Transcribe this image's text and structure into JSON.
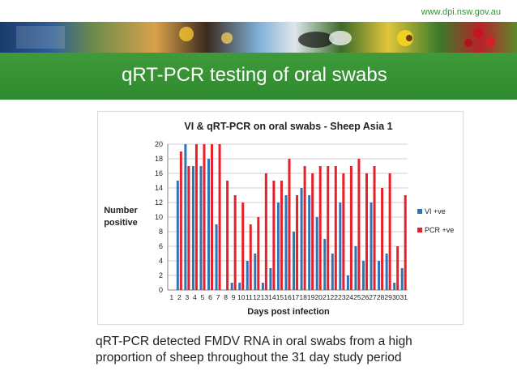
{
  "header": {
    "url": "www.dpi.nsw.gov.au",
    "banner_icon": "photo-strip-banner"
  },
  "slide": {
    "title": "qRT-PCR testing of oral swabs",
    "caption": "qRT-PCR detected FMDV RNA in oral swabs from a high proportion of sheep throughout the 31 day study period"
  },
  "colors": {
    "accent_green": "#2e8a2e",
    "series_vi": "#2e75b6",
    "series_pcr": "#e8202a"
  },
  "chart_data": {
    "type": "bar",
    "title": "VI & qRT-PCR on oral swabs - Sheep Asia 1",
    "xlabel": "Days post infection",
    "ylabel": "Number positive",
    "ylim": [
      0,
      20
    ],
    "yticks": [
      0,
      2,
      4,
      6,
      8,
      10,
      12,
      14,
      16,
      18,
      20
    ],
    "grid": true,
    "legend_position": "right",
    "categories": [
      "1",
      "2",
      "3",
      "4",
      "5",
      "6",
      "7",
      "8",
      "9",
      "10",
      "11",
      "12",
      "13",
      "14",
      "15",
      "16",
      "17",
      "18",
      "19",
      "20",
      "21",
      "22",
      "23",
      "24",
      "25",
      "26",
      "27",
      "28",
      "29",
      "30",
      "31"
    ],
    "series": [
      {
        "name": "VI +ve",
        "values": [
          0,
          15,
          20,
          17,
          17,
          18,
          9,
          0,
          1,
          1,
          4,
          5,
          1,
          3,
          12,
          13,
          8,
          14,
          13,
          10,
          7,
          5,
          12,
          2,
          6,
          4,
          12,
          4,
          5,
          1,
          3
        ]
      },
      {
        "name": "PCR +ve",
        "values": [
          0,
          19,
          17,
          20,
          20,
          20,
          20,
          15,
          13,
          12,
          9,
          10,
          16,
          15,
          15,
          18,
          13,
          17,
          16,
          17,
          17,
          17,
          16,
          17,
          18,
          16,
          17,
          14,
          16,
          6,
          13
        ]
      }
    ]
  }
}
